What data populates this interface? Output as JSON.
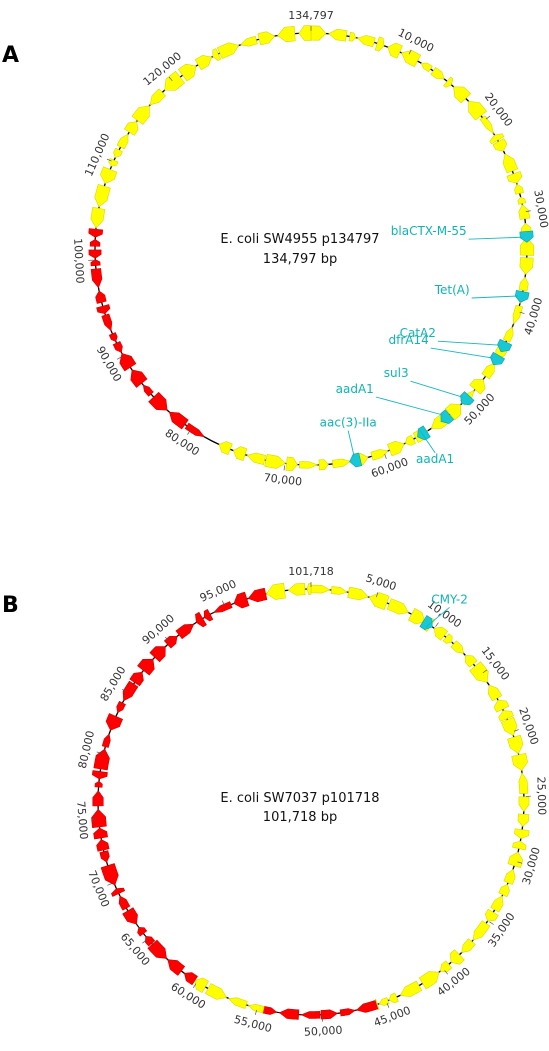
{
  "colors": {
    "yellow": "#ffff00",
    "yellow_stroke": "#d8d800",
    "red": "#ff0000",
    "red_stroke": "#cc0000",
    "cyan": "#17c9d6",
    "label_cyan": "#12b3b3"
  },
  "plasmids": [
    {
      "id": "A",
      "panel_label": "A",
      "name": "E. coli SW4955 p134797",
      "size_label": "134,797 bp",
      "length": 134797,
      "tick_labels": [
        {
          "pos": 0,
          "text": "134,797"
        },
        {
          "pos": 10000,
          "text": "10,000"
        },
        {
          "pos": 20000,
          "text": "20,000"
        },
        {
          "pos": 30000,
          "text": "30,000"
        },
        {
          "pos": 40000,
          "text": "40,000"
        },
        {
          "pos": 50000,
          "text": "50,000"
        },
        {
          "pos": 60000,
          "text": "60,000"
        },
        {
          "pos": 70000,
          "text": "70,000"
        },
        {
          "pos": 80000,
          "text": "80,000"
        },
        {
          "pos": 90000,
          "text": "90,000"
        },
        {
          "pos": 100000,
          "text": "100,000"
        },
        {
          "pos": 110000,
          "text": "110,000"
        },
        {
          "pos": 120000,
          "text": "120,000"
        }
      ],
      "regions": [
        {
          "start": 0,
          "end": 77000,
          "color": "yellow"
        },
        {
          "start": 78500,
          "end": 103200,
          "color": "red"
        },
        {
          "start": 103200,
          "end": 134797,
          "color": "yellow"
        }
      ],
      "genes": [
        {
          "name": "blaCTX-M-55",
          "pos": 32500
        },
        {
          "name": "Tet(A)",
          "pos": 38500
        },
        {
          "name": "CatA2",
          "pos": 43800
        },
        {
          "name": "dfrA14",
          "pos": 45300
        },
        {
          "name": "sul3",
          "pos": 50300
        },
        {
          "name": "aadA1",
          "pos": 53000
        },
        {
          "name": "aadA1",
          "pos": 55800
        },
        {
          "name": "aac(3)-IIa",
          "pos": 63000
        }
      ]
    },
    {
      "id": "B",
      "panel_label": "B",
      "name": "E. coli SW7037 p101718",
      "size_label": "101,718 bp",
      "length": 101718,
      "tick_labels": [
        {
          "pos": 0,
          "text": "101,718"
        },
        {
          "pos": 5000,
          "text": "5,000"
        },
        {
          "pos": 10000,
          "text": "10,000"
        },
        {
          "pos": 15000,
          "text": "15,000"
        },
        {
          "pos": 20000,
          "text": "20,000"
        },
        {
          "pos": 25000,
          "text": "25,000"
        },
        {
          "pos": 30000,
          "text": "30,000"
        },
        {
          "pos": 35000,
          "text": "35,000"
        },
        {
          "pos": 40000,
          "text": "40,000"
        },
        {
          "pos": 45000,
          "text": "45,000"
        },
        {
          "pos": 50000,
          "text": "50,000"
        },
        {
          "pos": 55000,
          "text": "55,000"
        },
        {
          "pos": 60000,
          "text": "60,000"
        },
        {
          "pos": 65000,
          "text": "65,000"
        },
        {
          "pos": 70000,
          "text": "70,000"
        },
        {
          "pos": 75000,
          "text": "75,000"
        },
        {
          "pos": 80000,
          "text": "80,000"
        },
        {
          "pos": 85000,
          "text": "85,000"
        },
        {
          "pos": 90000,
          "text": "90,000"
        },
        {
          "pos": 95000,
          "text": "95,000"
        }
      ],
      "regions": [
        {
          "start": 0,
          "end": 45800,
          "color": "yellow"
        },
        {
          "start": 45800,
          "end": 54500,
          "color": "red"
        },
        {
          "start": 54500,
          "end": 60200,
          "color": "yellow"
        },
        {
          "start": 60200,
          "end": 98300,
          "color": "red"
        },
        {
          "start": 98300,
          "end": 101718,
          "color": "yellow"
        }
      ],
      "genes": [
        {
          "name": "CMY-2",
          "pos": 9400
        }
      ]
    }
  ]
}
